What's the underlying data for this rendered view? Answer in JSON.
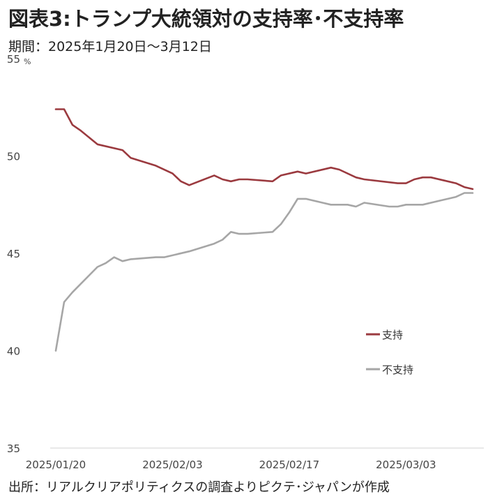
{
  "header": {
    "title": "図表3:トランプ大統領対の支持率･不支持率",
    "subtitle": "期間：2025年1月20日～3月12日"
  },
  "footer": {
    "source": "出所：リアルクリアポリティクスの調査よりピクテ･ジャパンが作成"
  },
  "chart_data": {
    "type": "line",
    "yunit": "%",
    "ylim": [
      35,
      55
    ],
    "yticks": [
      35,
      40,
      45,
      50,
      55
    ],
    "xlim": [
      "2025-01-20",
      "2025-03-12"
    ],
    "xticks": [
      "2025-01-20",
      "2025-02-03",
      "2025-02-17",
      "2025-03-03"
    ],
    "xtick_labels": [
      "2025/01/20",
      "2025/02/03",
      "2025/02/17",
      "2025/03/03"
    ],
    "legend_position": "lower-right",
    "grid": false,
    "series": [
      {
        "name": "支持",
        "color": "#9b3a3f",
        "points": [
          [
            "2025-01-20",
            52.4
          ],
          [
            "2025-01-21",
            52.4
          ],
          [
            "2025-01-22",
            51.6
          ],
          [
            "2025-01-23",
            51.3
          ],
          [
            "2025-01-25",
            50.6
          ],
          [
            "2025-01-28",
            50.3
          ],
          [
            "2025-01-29",
            49.9
          ],
          [
            "2025-02-01",
            49.5
          ],
          [
            "2025-02-03",
            49.1
          ],
          [
            "2025-02-04",
            48.7
          ],
          [
            "2025-02-05",
            48.5
          ],
          [
            "2025-02-08",
            49.0
          ],
          [
            "2025-02-09",
            48.8
          ],
          [
            "2025-02-10",
            48.7
          ],
          [
            "2025-02-11",
            48.8
          ],
          [
            "2025-02-12",
            48.8
          ],
          [
            "2025-02-15",
            48.7
          ],
          [
            "2025-02-16",
            49.0
          ],
          [
            "2025-02-18",
            49.2
          ],
          [
            "2025-02-19",
            49.1
          ],
          [
            "2025-02-22",
            49.4
          ],
          [
            "2025-02-23",
            49.3
          ],
          [
            "2025-02-25",
            48.9
          ],
          [
            "2025-02-26",
            48.8
          ],
          [
            "2025-03-02",
            48.6
          ],
          [
            "2025-03-03",
            48.6
          ],
          [
            "2025-03-04",
            48.8
          ],
          [
            "2025-03-05",
            48.9
          ],
          [
            "2025-03-06",
            48.9
          ],
          [
            "2025-03-09",
            48.6
          ],
          [
            "2025-03-10",
            48.4
          ],
          [
            "2025-03-11",
            48.3
          ]
        ]
      },
      {
        "name": "不支持",
        "color": "#a6a6a6",
        "points": [
          [
            "2025-01-20",
            40.0
          ],
          [
            "2025-01-21",
            42.5
          ],
          [
            "2025-01-22",
            43.0
          ],
          [
            "2025-01-25",
            44.3
          ],
          [
            "2025-01-26",
            44.5
          ],
          [
            "2025-01-27",
            44.8
          ],
          [
            "2025-01-28",
            44.6
          ],
          [
            "2025-01-29",
            44.7
          ],
          [
            "2025-02-01",
            44.8
          ],
          [
            "2025-02-02",
            44.8
          ],
          [
            "2025-02-05",
            45.1
          ],
          [
            "2025-02-08",
            45.5
          ],
          [
            "2025-02-09",
            45.7
          ],
          [
            "2025-02-10",
            46.1
          ],
          [
            "2025-02-11",
            46.0
          ],
          [
            "2025-02-12",
            46.0
          ],
          [
            "2025-02-15",
            46.1
          ],
          [
            "2025-02-16",
            46.5
          ],
          [
            "2025-02-17",
            47.1
          ],
          [
            "2025-02-18",
            47.8
          ],
          [
            "2025-02-19",
            47.8
          ],
          [
            "2025-02-21",
            47.6
          ],
          [
            "2025-02-22",
            47.5
          ],
          [
            "2025-02-24",
            47.5
          ],
          [
            "2025-02-25",
            47.4
          ],
          [
            "2025-02-26",
            47.6
          ],
          [
            "2025-03-01",
            47.4
          ],
          [
            "2025-03-02",
            47.4
          ],
          [
            "2025-03-03",
            47.5
          ],
          [
            "2025-03-05",
            47.5
          ],
          [
            "2025-03-09",
            47.9
          ],
          [
            "2025-03-10",
            48.1
          ],
          [
            "2025-03-11",
            48.1
          ]
        ]
      }
    ]
  }
}
